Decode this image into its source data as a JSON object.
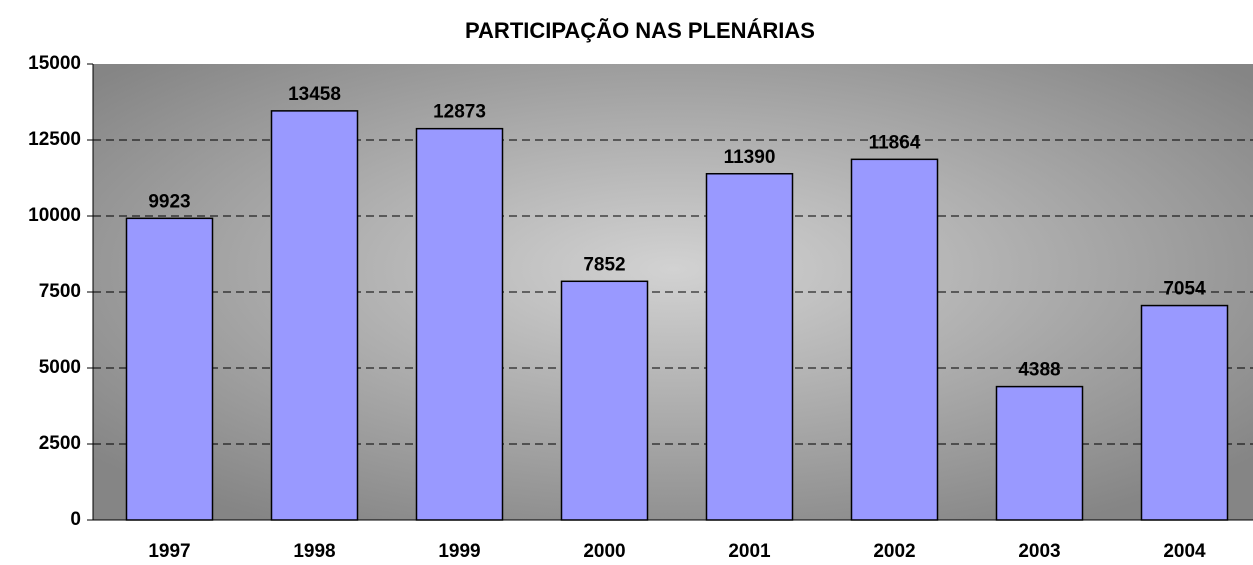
{
  "chart_data": {
    "type": "bar",
    "title": "PARTICIPAÇÃO NAS PLENÁRIAS",
    "categories": [
      "1997",
      "1998",
      "1999",
      "2000",
      "2001",
      "2002",
      "2003",
      "2004"
    ],
    "values": [
      9923,
      13458,
      12873,
      7852,
      11390,
      11864,
      4388,
      7054
    ],
    "color": "#9999ff",
    "ylim": [
      0,
      15000
    ],
    "yticks": [
      0,
      2500,
      5000,
      7500,
      10000,
      12500,
      15000
    ],
    "grid": true
  }
}
